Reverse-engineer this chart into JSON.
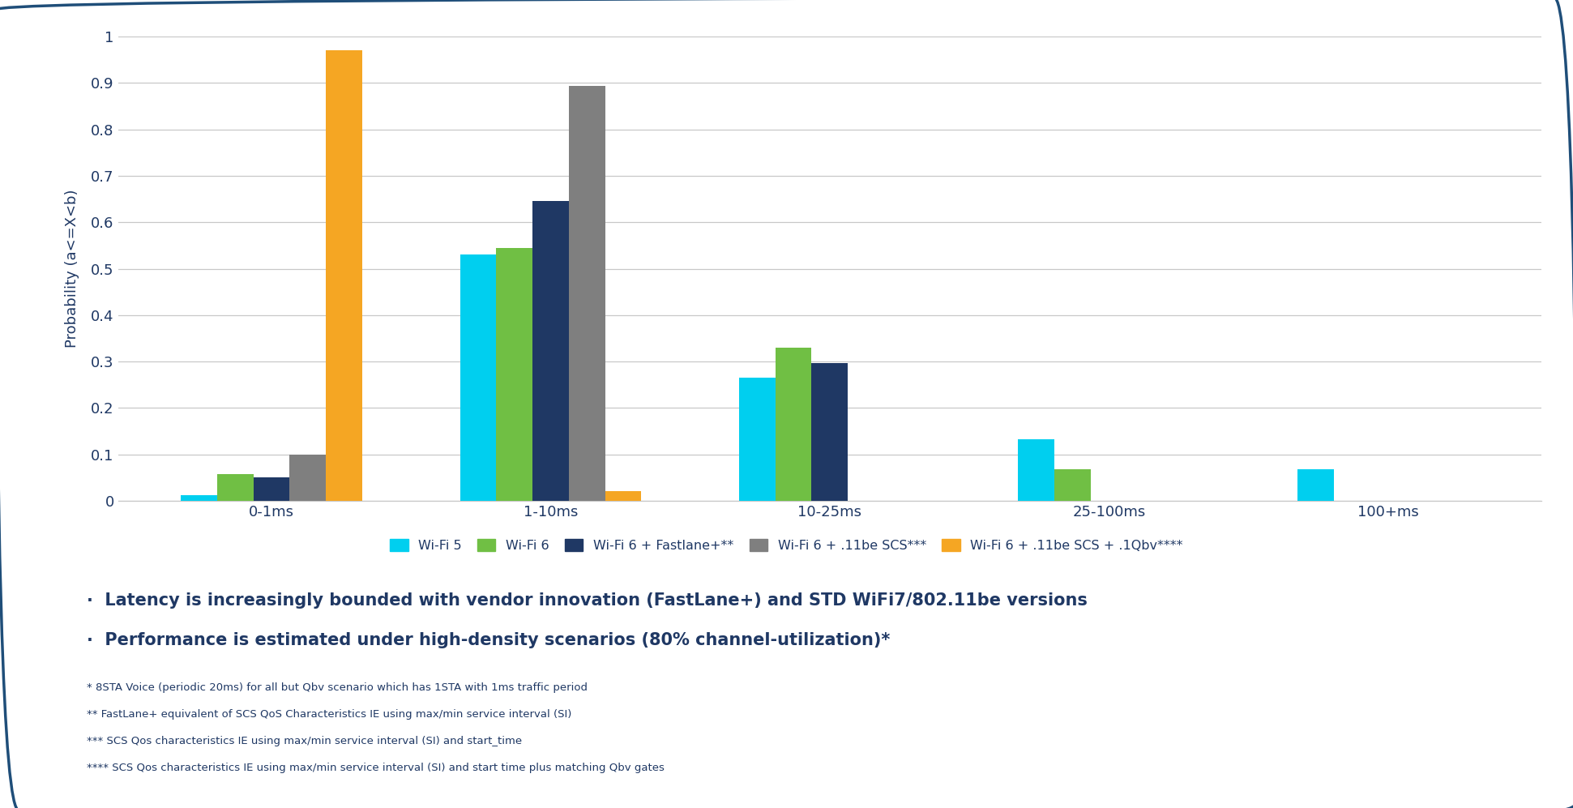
{
  "categories": [
    "0-1ms",
    "1-10ms",
    "10-25ms",
    "25-100ms",
    "100+ms"
  ],
  "series": {
    "Wi-Fi 5": [
      0.013,
      0.53,
      0.265,
      0.133,
      0.068
    ],
    "Wi-Fi 6": [
      0.057,
      0.545,
      0.33,
      0.068,
      0.0
    ],
    "Wi-Fi 6 + Fastlane+**": [
      0.05,
      0.645,
      0.297,
      0.0,
      0.0
    ],
    "Wi-Fi 6 + .11be SCS***": [
      0.1,
      0.893,
      0.0,
      0.0,
      0.0
    ],
    "Wi-Fi 6 + .11be SCS + .1Qbv****": [
      0.97,
      0.022,
      0.0,
      0.0,
      0.0
    ]
  },
  "colors": {
    "Wi-Fi 5": "#00CFEF",
    "Wi-Fi 6": "#70BF44",
    "Wi-Fi 6 + Fastlane+**": "#1F3864",
    "Wi-Fi 6 + .11be SCS***": "#7F7F7F",
    "Wi-Fi 6 + .11be SCS + .1Qbv****": "#F5A623"
  },
  "ylabel": "Probability (a<=X<b)",
  "ylim": [
    0,
    1.0
  ],
  "yticks": [
    0,
    0.1,
    0.2,
    0.3,
    0.4,
    0.5,
    0.6,
    0.7,
    0.8,
    0.9,
    1
  ],
  "background_color": "#FFFFFF",
  "border_color": "#1F4E79",
  "grid_color": "#C8C8C8",
  "text_color": "#1F3864",
  "bullet1": "Latency is increasingly bounded with vendor innovation (FastLane+) and STD WiFi7/802.11be versions",
  "bullet2": "Performance is estimated under high-density scenarios (80% channel-utilization)*",
  "footnote1": "* 8STA Voice (periodic 20ms) for all but Qbv scenario which has 1STA with 1ms traffic period",
  "footnote2": "** FastLane+ equivalent of SCS QoS Characteristics IE using max/min service interval (SI)",
  "footnote3": "*** SCS Qos characteristics IE using max/min service interval (SI) and start_time",
  "footnote4": "**** SCS Qos characteristics IE using max/min service interval (SI) and start time plus matching Qbv gates"
}
